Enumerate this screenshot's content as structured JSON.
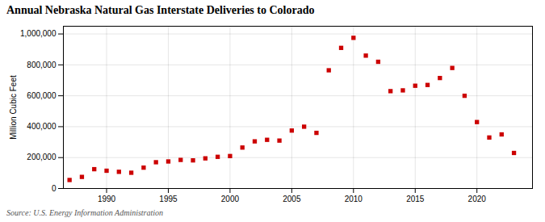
{
  "chart_data": {
    "type": "scatter",
    "title": "Annual Nebraska Natural Gas Interstate Deliveries to Colorado",
    "ylabel": "Million Cubic Feet",
    "source": "Source: U.S. Energy Information Administration",
    "color": "#cc0000",
    "marker": "square",
    "grid": true,
    "xlim": [
      1986.5,
      2024.5
    ],
    "ylim": [
      0,
      1050000
    ],
    "xticks": [
      1990,
      1995,
      2000,
      2005,
      2010,
      2015,
      2020
    ],
    "yticks": [
      0,
      {
        "value": 200000,
        "label": "200,000"
      },
      {
        "value": 400000,
        "label": "400,000"
      },
      {
        "value": 600000,
        "label": "600,000"
      },
      {
        "value": 800000,
        "label": "800,000"
      },
      {
        "value": 1000000,
        "label": "1,000,000"
      }
    ],
    "x": [
      1987,
      1988,
      1989,
      1990,
      1991,
      1992,
      1993,
      1994,
      1995,
      1996,
      1997,
      1998,
      1999,
      2000,
      2001,
      2002,
      2003,
      2004,
      2005,
      2006,
      2007,
      2008,
      2009,
      2010,
      2011,
      2012,
      2013,
      2014,
      2015,
      2016,
      2017,
      2018,
      2019,
      2020,
      2021,
      2022,
      2023
    ],
    "values": [
      55000,
      75000,
      125000,
      115000,
      108000,
      102000,
      135000,
      170000,
      175000,
      185000,
      182000,
      195000,
      205000,
      210000,
      265000,
      305000,
      315000,
      310000,
      375000,
      400000,
      360000,
      765000,
      910000,
      975000,
      860000,
      820000,
      630000,
      635000,
      665000,
      670000,
      715000,
      780000,
      600000,
      430000,
      330000,
      350000,
      230000
    ]
  }
}
